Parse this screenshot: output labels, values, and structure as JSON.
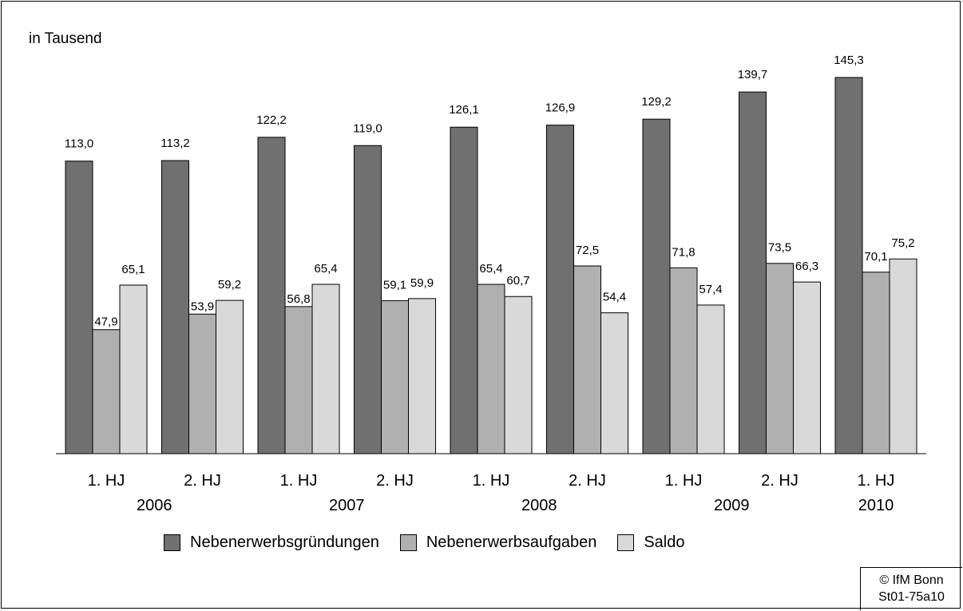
{
  "chart_data": {
    "type": "bar",
    "unit_label": "in Tausend",
    "categories": [
      "1. HJ",
      "2. HJ",
      "1. HJ",
      "2. HJ",
      "1. HJ",
      "2. HJ",
      "1. HJ",
      "2. HJ",
      "1. HJ"
    ],
    "years": [
      "2006",
      "2007",
      "2008",
      "2009",
      "2010"
    ],
    "series": [
      {
        "name": "Nebenerwerbsgründungen",
        "color": "#707070",
        "values": [
          113.0,
          113.2,
          122.2,
          119.0,
          126.1,
          126.9,
          129.2,
          139.7,
          145.3
        ],
        "labels": [
          "113,0",
          "113,2",
          "122,2",
          "119,0",
          "126,1",
          "126,9",
          "129,2",
          "139,7",
          "145,3"
        ]
      },
      {
        "name": "Nebenerwerbsaufgaben",
        "color": "#b0b0b0",
        "values": [
          47.9,
          53.9,
          56.8,
          59.1,
          65.4,
          72.5,
          71.8,
          73.5,
          70.1
        ],
        "labels": [
          "47,9",
          "53,9",
          "56,8",
          "59,1",
          "65,4",
          "72,5",
          "71,8",
          "73,5",
          "70,1"
        ]
      },
      {
        "name": "Saldo",
        "color": "#d9d9d9",
        "values": [
          65.1,
          59.2,
          65.4,
          59.9,
          60.7,
          54.4,
          57.4,
          66.3,
          75.2
        ],
        "labels": [
          "65,1",
          "59,2",
          "65,4",
          "59,9",
          "60,7",
          "54,4",
          "57,4",
          "66,3",
          "75,2"
        ]
      }
    ],
    "ylim": [
      0,
      145.3
    ],
    "grid": false,
    "legend_position": "bottom"
  },
  "source": {
    "line1": "© IfM Bonn",
    "line2": "St01-75a10"
  }
}
